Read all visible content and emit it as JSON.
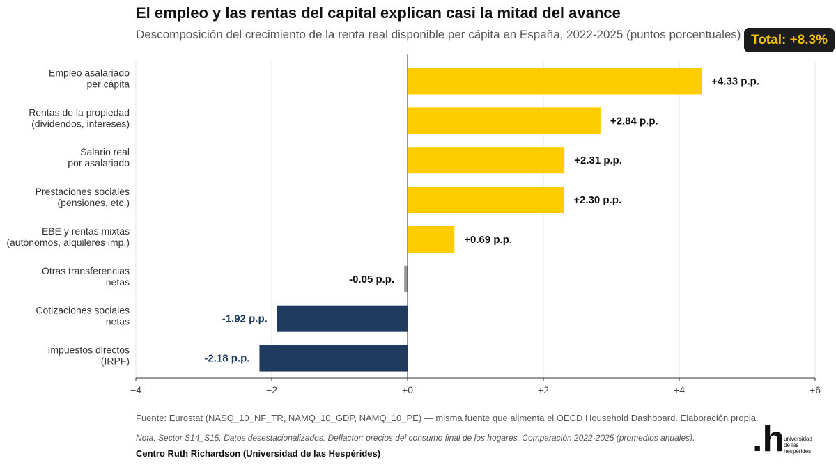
{
  "title": "El empleo y las rentas del capital explican casi la mitad del avance",
  "subtitle": "Descomposición del crecimiento de la renta real disponible per cápita en España, 2022-2025 (puntos porcentuales)",
  "total_badge": "Total: +8.3%",
  "footer": {
    "source": "Fuente: Eurostat (NASQ_10_NF_TR, NAMQ_10_GDP, NAMQ_10_PE) — misma fuente que alimenta el OECD Household Dashboard. Elaboración propia.",
    "note": "Nota: Sector S14_S15. Datos desestacionalizados. Deflactor: precios del consumo final de los hogares. Comparación 2022-2025 (promedios anuales).",
    "credit": "Centro Ruth Richardson (Universidad de las Hespérides)"
  },
  "logo": {
    "mark": ".h",
    "lines": [
      "universidad",
      "de las",
      "hespérides"
    ]
  },
  "colors": {
    "positive": "#FFCC00",
    "negative": "#1F3A5F",
    "neutral": "#999999",
    "negative_label": "#1F3A5F",
    "positive_label": "#111111",
    "neutral_label": "#111111"
  },
  "chart_data": {
    "type": "bar",
    "orientation": "horizontal",
    "categories": [
      [
        "Empleo asalariado",
        "per cápita"
      ],
      [
        "Rentas de la propiedad",
        "(dividendos, intereses)"
      ],
      [
        "Salario real",
        "por asalariado"
      ],
      [
        "Prestaciones sociales",
        "(pensiones, etc.)"
      ],
      [
        "EBE y rentas mixtas",
        "(autónomos, alquileres imp.)"
      ],
      [
        "Otras transferencias",
        "netas"
      ],
      [
        "Cotizaciones sociales",
        "netas"
      ],
      [
        "Impuestos directos",
        "(IRPF)"
      ]
    ],
    "values": [
      4.33,
      2.84,
      2.31,
      2.3,
      0.69,
      -0.05,
      -1.92,
      -2.18
    ],
    "value_labels": [
      "+4.33 p.p.",
      "+2.84 p.p.",
      "+2.31 p.p.",
      "+2.30 p.p.",
      "+0.69 p.p.",
      "-0.05 p.p.",
      "-1.92 p.p.",
      "-2.18 p.p."
    ],
    "bar_kind": [
      "positive",
      "positive",
      "positive",
      "positive",
      "positive",
      "neutral",
      "negative",
      "negative"
    ],
    "xlim": [
      -4,
      6
    ],
    "xticks": [
      -4,
      -2,
      0,
      2,
      4,
      6
    ],
    "xtick_labels": [
      "−4",
      "−2",
      "+0",
      "+2",
      "+4",
      "+6"
    ],
    "grid": "vertical"
  }
}
